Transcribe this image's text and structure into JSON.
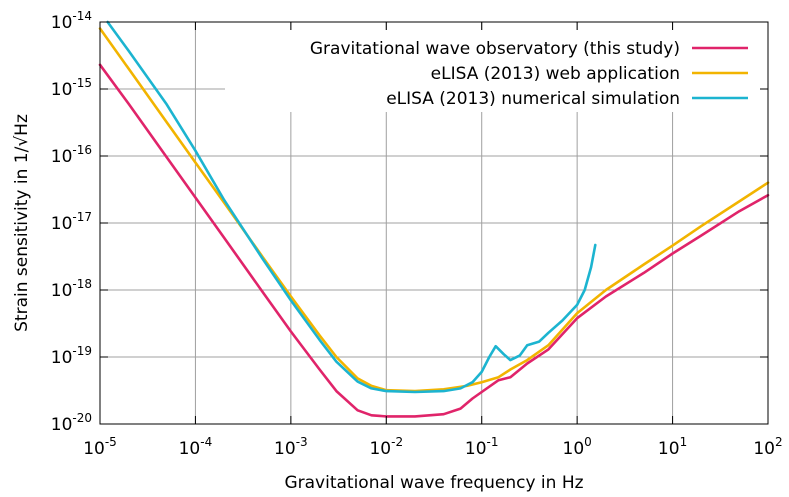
{
  "chart_data": {
    "type": "line",
    "title": "",
    "xlabel": "Gravitational wave frequency in Hz",
    "ylabel": "Strain sensitivity in 1/√Hz",
    "x_scale": "log",
    "y_scale": "log",
    "xlim": [
      1e-05,
      100
    ],
    "ylim": [
      1e-20,
      1e-14
    ],
    "grid": true,
    "legend_position": "top-right",
    "x_ticks": [
      {
        "base": "10",
        "exp": "-5"
      },
      {
        "base": "10",
        "exp": "-4"
      },
      {
        "base": "10",
        "exp": "-3"
      },
      {
        "base": "10",
        "exp": "-2"
      },
      {
        "base": "10",
        "exp": "-1"
      },
      {
        "base": "10",
        "exp": "0"
      },
      {
        "base": "10",
        "exp": "1"
      },
      {
        "base": "10",
        "exp": "2"
      }
    ],
    "y_ticks": [
      {
        "base": "10",
        "exp": "-20"
      },
      {
        "base": "10",
        "exp": "-19"
      },
      {
        "base": "10",
        "exp": "-18"
      },
      {
        "base": "10",
        "exp": "-17"
      },
      {
        "base": "10",
        "exp": "-16"
      },
      {
        "base": "10",
        "exp": "-15"
      },
      {
        "base": "10",
        "exp": "-14"
      }
    ],
    "series": [
      {
        "name": "Gravitational wave observatory (this study)",
        "color": "#e0246a",
        "points": [
          [
            1e-05,
            2.3e-15
          ],
          [
            2e-05,
            6e-16
          ],
          [
            5e-05,
            9.6e-17
          ],
          [
            0.0001,
            2.4e-17
          ],
          [
            0.0002,
            6e-18
          ],
          [
            0.0005,
            9.6e-19
          ],
          [
            0.001,
            2.4e-19
          ],
          [
            0.002,
            6.5e-20
          ],
          [
            0.003,
            3.1e-20
          ],
          [
            0.005,
            1.6e-20
          ],
          [
            0.007,
            1.35e-20
          ],
          [
            0.01,
            1.3e-20
          ],
          [
            0.02,
            1.3e-20
          ],
          [
            0.04,
            1.4e-20
          ],
          [
            0.06,
            1.7e-20
          ],
          [
            0.08,
            2.4e-20
          ],
          [
            0.1,
            3e-20
          ],
          [
            0.15,
            4.5e-20
          ],
          [
            0.2,
            5e-20
          ],
          [
            0.3,
            8e-20
          ],
          [
            0.5,
            1.3e-19
          ],
          [
            1,
            3.8e-19
          ],
          [
            2,
            8e-19
          ],
          [
            5,
            1.8e-18
          ],
          [
            10,
            3.5e-18
          ],
          [
            20,
            6.5e-18
          ],
          [
            50,
            1.5e-17
          ],
          [
            100,
            2.6e-17
          ]
        ]
      },
      {
        "name": "eLISA (2013) web application",
        "color": "#f2b400",
        "points": [
          [
            1e-05,
            8e-15
          ],
          [
            2e-05,
            2e-15
          ],
          [
            5e-05,
            3.2e-16
          ],
          [
            0.0001,
            8e-17
          ],
          [
            0.0002,
            2e-17
          ],
          [
            0.0005,
            3.2e-18
          ],
          [
            0.001,
            8e-19
          ],
          [
            0.002,
            2.1e-19
          ],
          [
            0.003,
            1e-19
          ],
          [
            0.005,
            4.8e-20
          ],
          [
            0.007,
            3.7e-20
          ],
          [
            0.01,
            3.2e-20
          ],
          [
            0.02,
            3.1e-20
          ],
          [
            0.04,
            3.3e-20
          ],
          [
            0.07,
            3.7e-20
          ],
          [
            0.1,
            4.2e-20
          ],
          [
            0.15,
            5e-20
          ],
          [
            0.2,
            6.5e-20
          ],
          [
            0.3,
            9e-20
          ],
          [
            0.5,
            1.5e-19
          ],
          [
            1,
            4.5e-19
          ],
          [
            2,
            1e-18
          ],
          [
            5,
            2.4e-18
          ],
          [
            10,
            4.6e-18
          ],
          [
            20,
            9e-18
          ],
          [
            50,
            2.1e-17
          ],
          [
            100,
            4e-17
          ]
        ]
      },
      {
        "name": "eLISA (2013) numerical simulation",
        "color": "#1cb4d0",
        "points": [
          [
            1.2e-05,
            1e-14
          ],
          [
            2e-05,
            3.7e-15
          ],
          [
            5e-05,
            5.9e-16
          ],
          [
            0.0001,
            1.2e-16
          ],
          [
            0.0002,
            2.2e-17
          ],
          [
            0.0005,
            3e-18
          ],
          [
            0.001,
            7e-19
          ],
          [
            0.002,
            1.8e-19
          ],
          [
            0.003,
            8.5e-20
          ],
          [
            0.005,
            4.3e-20
          ],
          [
            0.007,
            3.4e-20
          ],
          [
            0.01,
            3.1e-20
          ],
          [
            0.02,
            3e-20
          ],
          [
            0.04,
            3.1e-20
          ],
          [
            0.06,
            3.4e-20
          ],
          [
            0.08,
            4.2e-20
          ],
          [
            0.1,
            6e-20
          ],
          [
            0.12,
            1e-19
          ],
          [
            0.14,
            1.45e-19
          ],
          [
            0.17,
            1.1e-19
          ],
          [
            0.2,
            9e-20
          ],
          [
            0.25,
            1.05e-19
          ],
          [
            0.3,
            1.5e-19
          ],
          [
            0.4,
            1.7e-19
          ],
          [
            0.5,
            2.3e-19
          ],
          [
            0.7,
            3.5e-19
          ],
          [
            1,
            6e-19
          ],
          [
            1.2,
            1e-18
          ],
          [
            1.4,
            2.2e-18
          ],
          [
            1.55,
            4.7e-18
          ]
        ]
      }
    ]
  }
}
